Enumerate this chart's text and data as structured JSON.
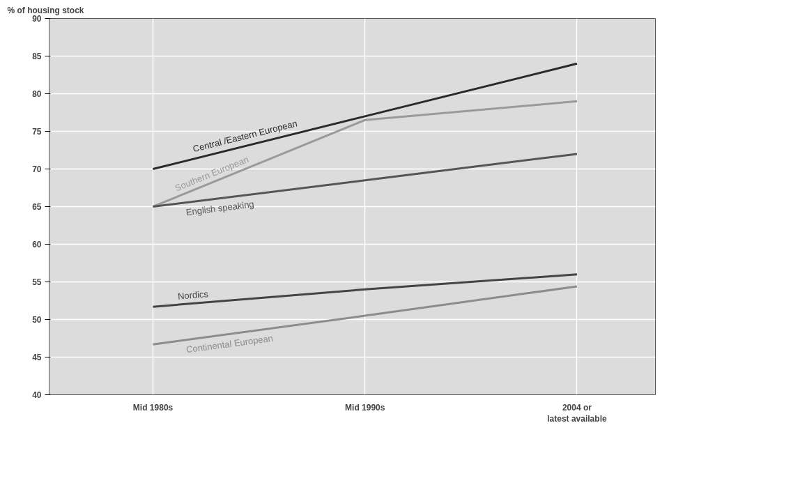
{
  "chart_data": {
    "type": "line",
    "ylabel": "% of housing stock",
    "categories": [
      "Mid 1980s",
      "Mid 1990s",
      "2004 or\nlatest available"
    ],
    "series": [
      {
        "name": "Central /Eastern European",
        "color": "#2a2a2a",
        "values": [
          70,
          77,
          84
        ]
      },
      {
        "name": "Southern European",
        "color": "#9a9a9a",
        "values": [
          65,
          76.5,
          79
        ]
      },
      {
        "name": "English speaking",
        "color": "#555555",
        "values": [
          65,
          68.5,
          72
        ]
      },
      {
        "name": "Nordics",
        "color": "#444444",
        "values": [
          51.7,
          54,
          56
        ]
      },
      {
        "name": "Continental European",
        "color": "#8c8c8c",
        "values": [
          46.7,
          50.5,
          54.4
        ]
      }
    ],
    "ylim": [
      40,
      90
    ],
    "yticks": [
      40,
      45,
      50,
      55,
      60,
      65,
      70,
      75,
      80,
      85,
      90
    ],
    "grid": true,
    "marker": "none",
    "line_style": "solid"
  }
}
